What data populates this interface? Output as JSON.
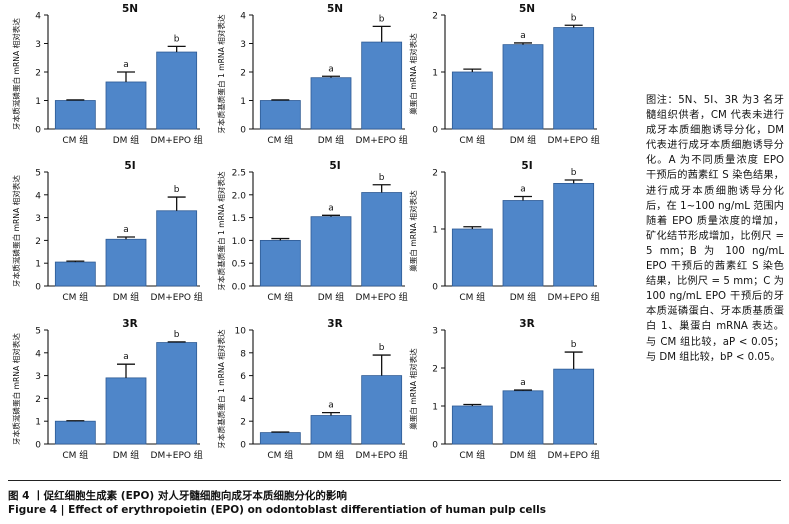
{
  "chart_data": [
    {
      "type": "bar",
      "title": "5N",
      "ylabel": "牙本质涎磷蛋白 mRNA 相对表达",
      "categories": [
        "CM 组",
        "DM 组",
        "DM+EPO 组"
      ],
      "values": [
        1.0,
        1.65,
        2.7
      ],
      "errors": [
        0.02,
        0.35,
        0.2
      ],
      "sig": [
        "",
        "a",
        "b"
      ],
      "ylim": [
        0,
        4
      ],
      "yticks": [
        0,
        1,
        2,
        3,
        4
      ]
    },
    {
      "type": "bar",
      "title": "5N",
      "ylabel": "牙本质基质蛋白 1 mRNA 相对表达",
      "categories": [
        "CM 组",
        "DM 组",
        "DM+EPO 组"
      ],
      "values": [
        1.0,
        1.8,
        3.05
      ],
      "errors": [
        0.02,
        0.05,
        0.55
      ],
      "sig": [
        "",
        "a",
        "b"
      ],
      "ylim": [
        0,
        4
      ],
      "yticks": [
        0,
        1,
        2,
        3,
        4
      ]
    },
    {
      "type": "bar",
      "title": "5N",
      "ylabel": "巢蛋白 mRNA 相对表达",
      "categories": [
        "CM 组",
        "DM 组",
        "DM+EPO 组"
      ],
      "values": [
        1.0,
        1.48,
        1.78
      ],
      "errors": [
        0.05,
        0.03,
        0.04
      ],
      "sig": [
        "",
        "a",
        "b"
      ],
      "ylim": [
        0,
        2
      ],
      "yticks": [
        0,
        1,
        2
      ]
    },
    {
      "type": "bar",
      "title": "5I",
      "ylabel": "牙本质涎磷蛋白 mRNA 相对表达",
      "categories": [
        "CM 组",
        "DM 组",
        "DM+EPO 组"
      ],
      "values": [
        1.05,
        2.05,
        3.3
      ],
      "errors": [
        0.04,
        0.1,
        0.6
      ],
      "sig": [
        "",
        "a",
        "b"
      ],
      "ylim": [
        0,
        5
      ],
      "yticks": [
        0,
        1,
        2,
        3,
        4,
        5
      ]
    },
    {
      "type": "bar",
      "title": "5I",
      "ylabel": "牙本质基质蛋白 1 mRNA 相对表达",
      "categories": [
        "CM 组",
        "DM 组",
        "DM+EPO 组"
      ],
      "values": [
        1.0,
        1.52,
        2.05
      ],
      "errors": [
        0.04,
        0.03,
        0.17
      ],
      "sig": [
        "",
        "a",
        "b"
      ],
      "ylim": [
        0,
        2.5
      ],
      "yticks": [
        0.0,
        0.5,
        1.0,
        1.5,
        2.0,
        2.5
      ]
    },
    {
      "type": "bar",
      "title": "5I",
      "ylabel": "巢蛋白 mRNA 相对表达",
      "categories": [
        "CM 组",
        "DM 组",
        "DM+EPO 组"
      ],
      "values": [
        1.0,
        1.5,
        1.8
      ],
      "errors": [
        0.04,
        0.07,
        0.06
      ],
      "sig": [
        "",
        "a",
        "b"
      ],
      "ylim": [
        0,
        2
      ],
      "yticks": [
        0,
        1,
        2
      ]
    },
    {
      "type": "bar",
      "title": "3R",
      "ylabel": "牙本质涎磷蛋白 mRNA 相对表达",
      "categories": [
        "CM 组",
        "DM 组",
        "DM+EPO 组"
      ],
      "values": [
        1.0,
        2.9,
        4.45
      ],
      "errors": [
        0.02,
        0.6,
        0.03
      ],
      "sig": [
        "",
        "a",
        "b"
      ],
      "ylim": [
        0,
        5
      ],
      "yticks": [
        0,
        1,
        2,
        3,
        4,
        5
      ]
    },
    {
      "type": "bar",
      "title": "3R",
      "ylabel": "牙本质基质蛋白 1 mRNA 相对表达",
      "categories": [
        "CM 组",
        "DM 组",
        "DM+EPO 组"
      ],
      "values": [
        1.0,
        2.5,
        6.0
      ],
      "errors": [
        0.05,
        0.25,
        1.8
      ],
      "sig": [
        "",
        "a",
        "b"
      ],
      "ylim": [
        0,
        10
      ],
      "yticks": [
        0,
        2,
        4,
        6,
        8,
        10
      ]
    },
    {
      "type": "bar",
      "title": "3R",
      "ylabel": "巢蛋白 mRNA 相对表达",
      "categories": [
        "CM 组",
        "DM 组",
        "DM+EPO 组"
      ],
      "values": [
        1.0,
        1.4,
        1.97
      ],
      "errors": [
        0.04,
        0.02,
        0.45
      ],
      "sig": [
        "",
        "a",
        "b"
      ],
      "ylim": [
        0,
        3
      ],
      "yticks": [
        0,
        1,
        2,
        3
      ]
    }
  ],
  "side_note": "图注：5N、5I、3R 为3 名牙髓组织供者，CM 代表未进行成牙本质细胞诱导分化，DM 代表进行成牙本质细胞诱导分化。A 为不同质量浓度 EPO 干预后的茜素红 S 染色结果，进行成牙本质细胞诱导分化后，在 1~100 ng/mL 范围内随着 EPO 质量浓度的增加，矿化结节形成增加，比例尺 = 5 mm；B 为 100 ng/mL EPO 干预后的茜素红 S 染色结果，比例尺 = 5 mm；C 为 100 ng/mL EPO 干预后的牙本质涎磷蛋白、牙本质基质蛋白 1、巢蛋白 mRNA 表达。与 CM 组比较，aP < 0.05；与 DM 组比较，bP < 0.05。",
  "caption_cn": "图 4 丨促红细胞生成素 (EPO) 对人牙髓细胞向成牙本质细胞分化的影响",
  "caption_en": "Figure 4 | Effect of erythropoietin (EPO) on odontoblast differentiation of human pulp cells",
  "colors": {
    "bar": "#4f86c9",
    "bar_edge": "#2d5a94",
    "axis": "#111111"
  }
}
